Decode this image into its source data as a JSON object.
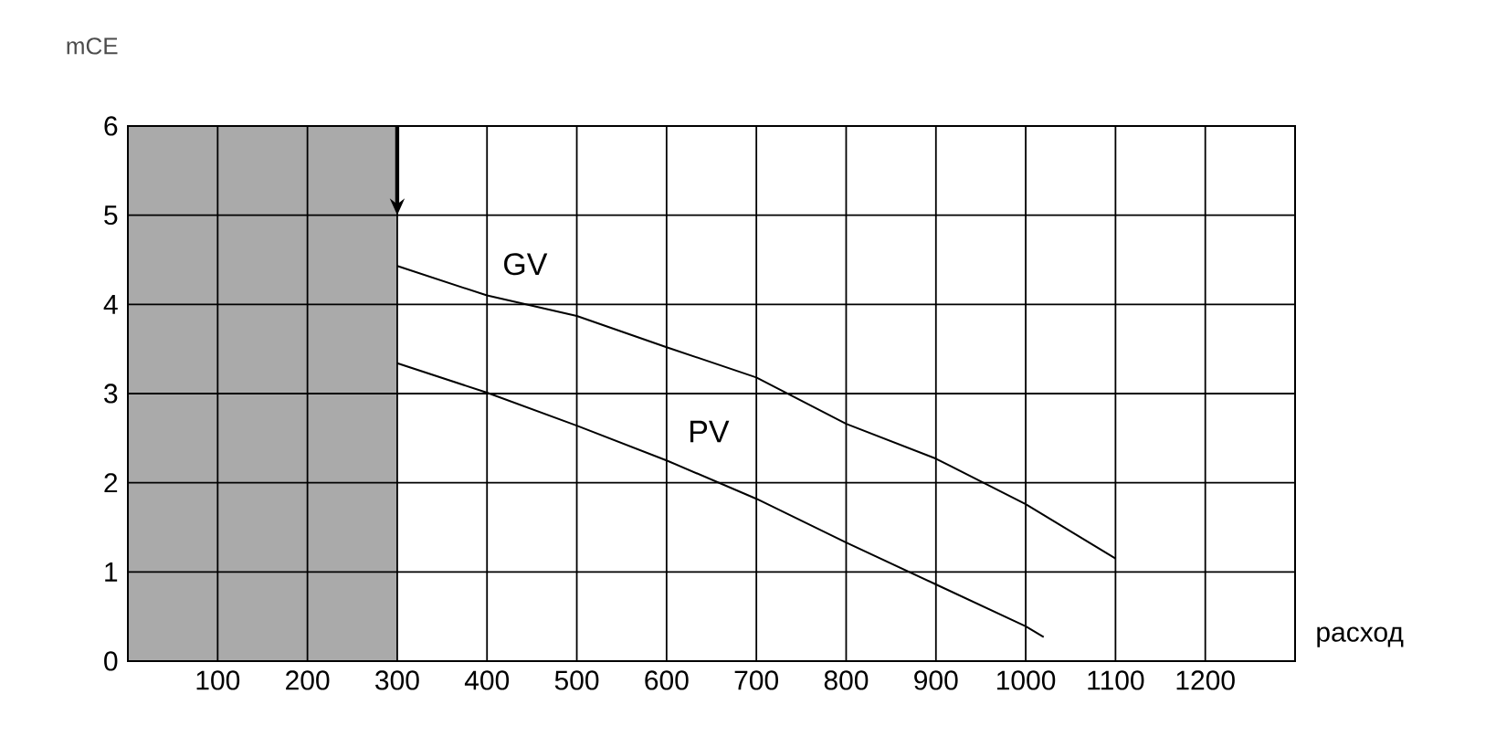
{
  "chart_data": {
    "type": "line",
    "xlabel": "расход",
    "ylabel": "mCE",
    "xlim": [
      0,
      1300
    ],
    "ylim": [
      0,
      6
    ],
    "xticks": [
      100,
      200,
      300,
      400,
      500,
      600,
      700,
      800,
      900,
      1000,
      1100,
      1200
    ],
    "yticks": [
      0,
      1,
      2,
      3,
      4,
      5,
      6
    ],
    "grid": true,
    "bands": [
      {
        "axis": "x",
        "from": 0,
        "to": 300,
        "color": "#aaaaaa"
      }
    ],
    "series": [
      {
        "name": "GV",
        "color": "#000000",
        "x": [
          300,
          400,
          500,
          600,
          700,
          800,
          900,
          1000,
          1100
        ],
        "values": [
          4.43,
          4.1,
          3.87,
          3.52,
          3.18,
          2.66,
          2.27,
          1.76,
          1.15
        ]
      },
      {
        "name": "PV",
        "color": "#000000",
        "x": [
          300,
          400,
          500,
          600,
          700,
          800,
          900,
          1000,
          1020
        ],
        "values": [
          3.34,
          3.01,
          2.64,
          2.25,
          1.82,
          1.33,
          0.86,
          0.39,
          0.27
        ]
      }
    ]
  }
}
